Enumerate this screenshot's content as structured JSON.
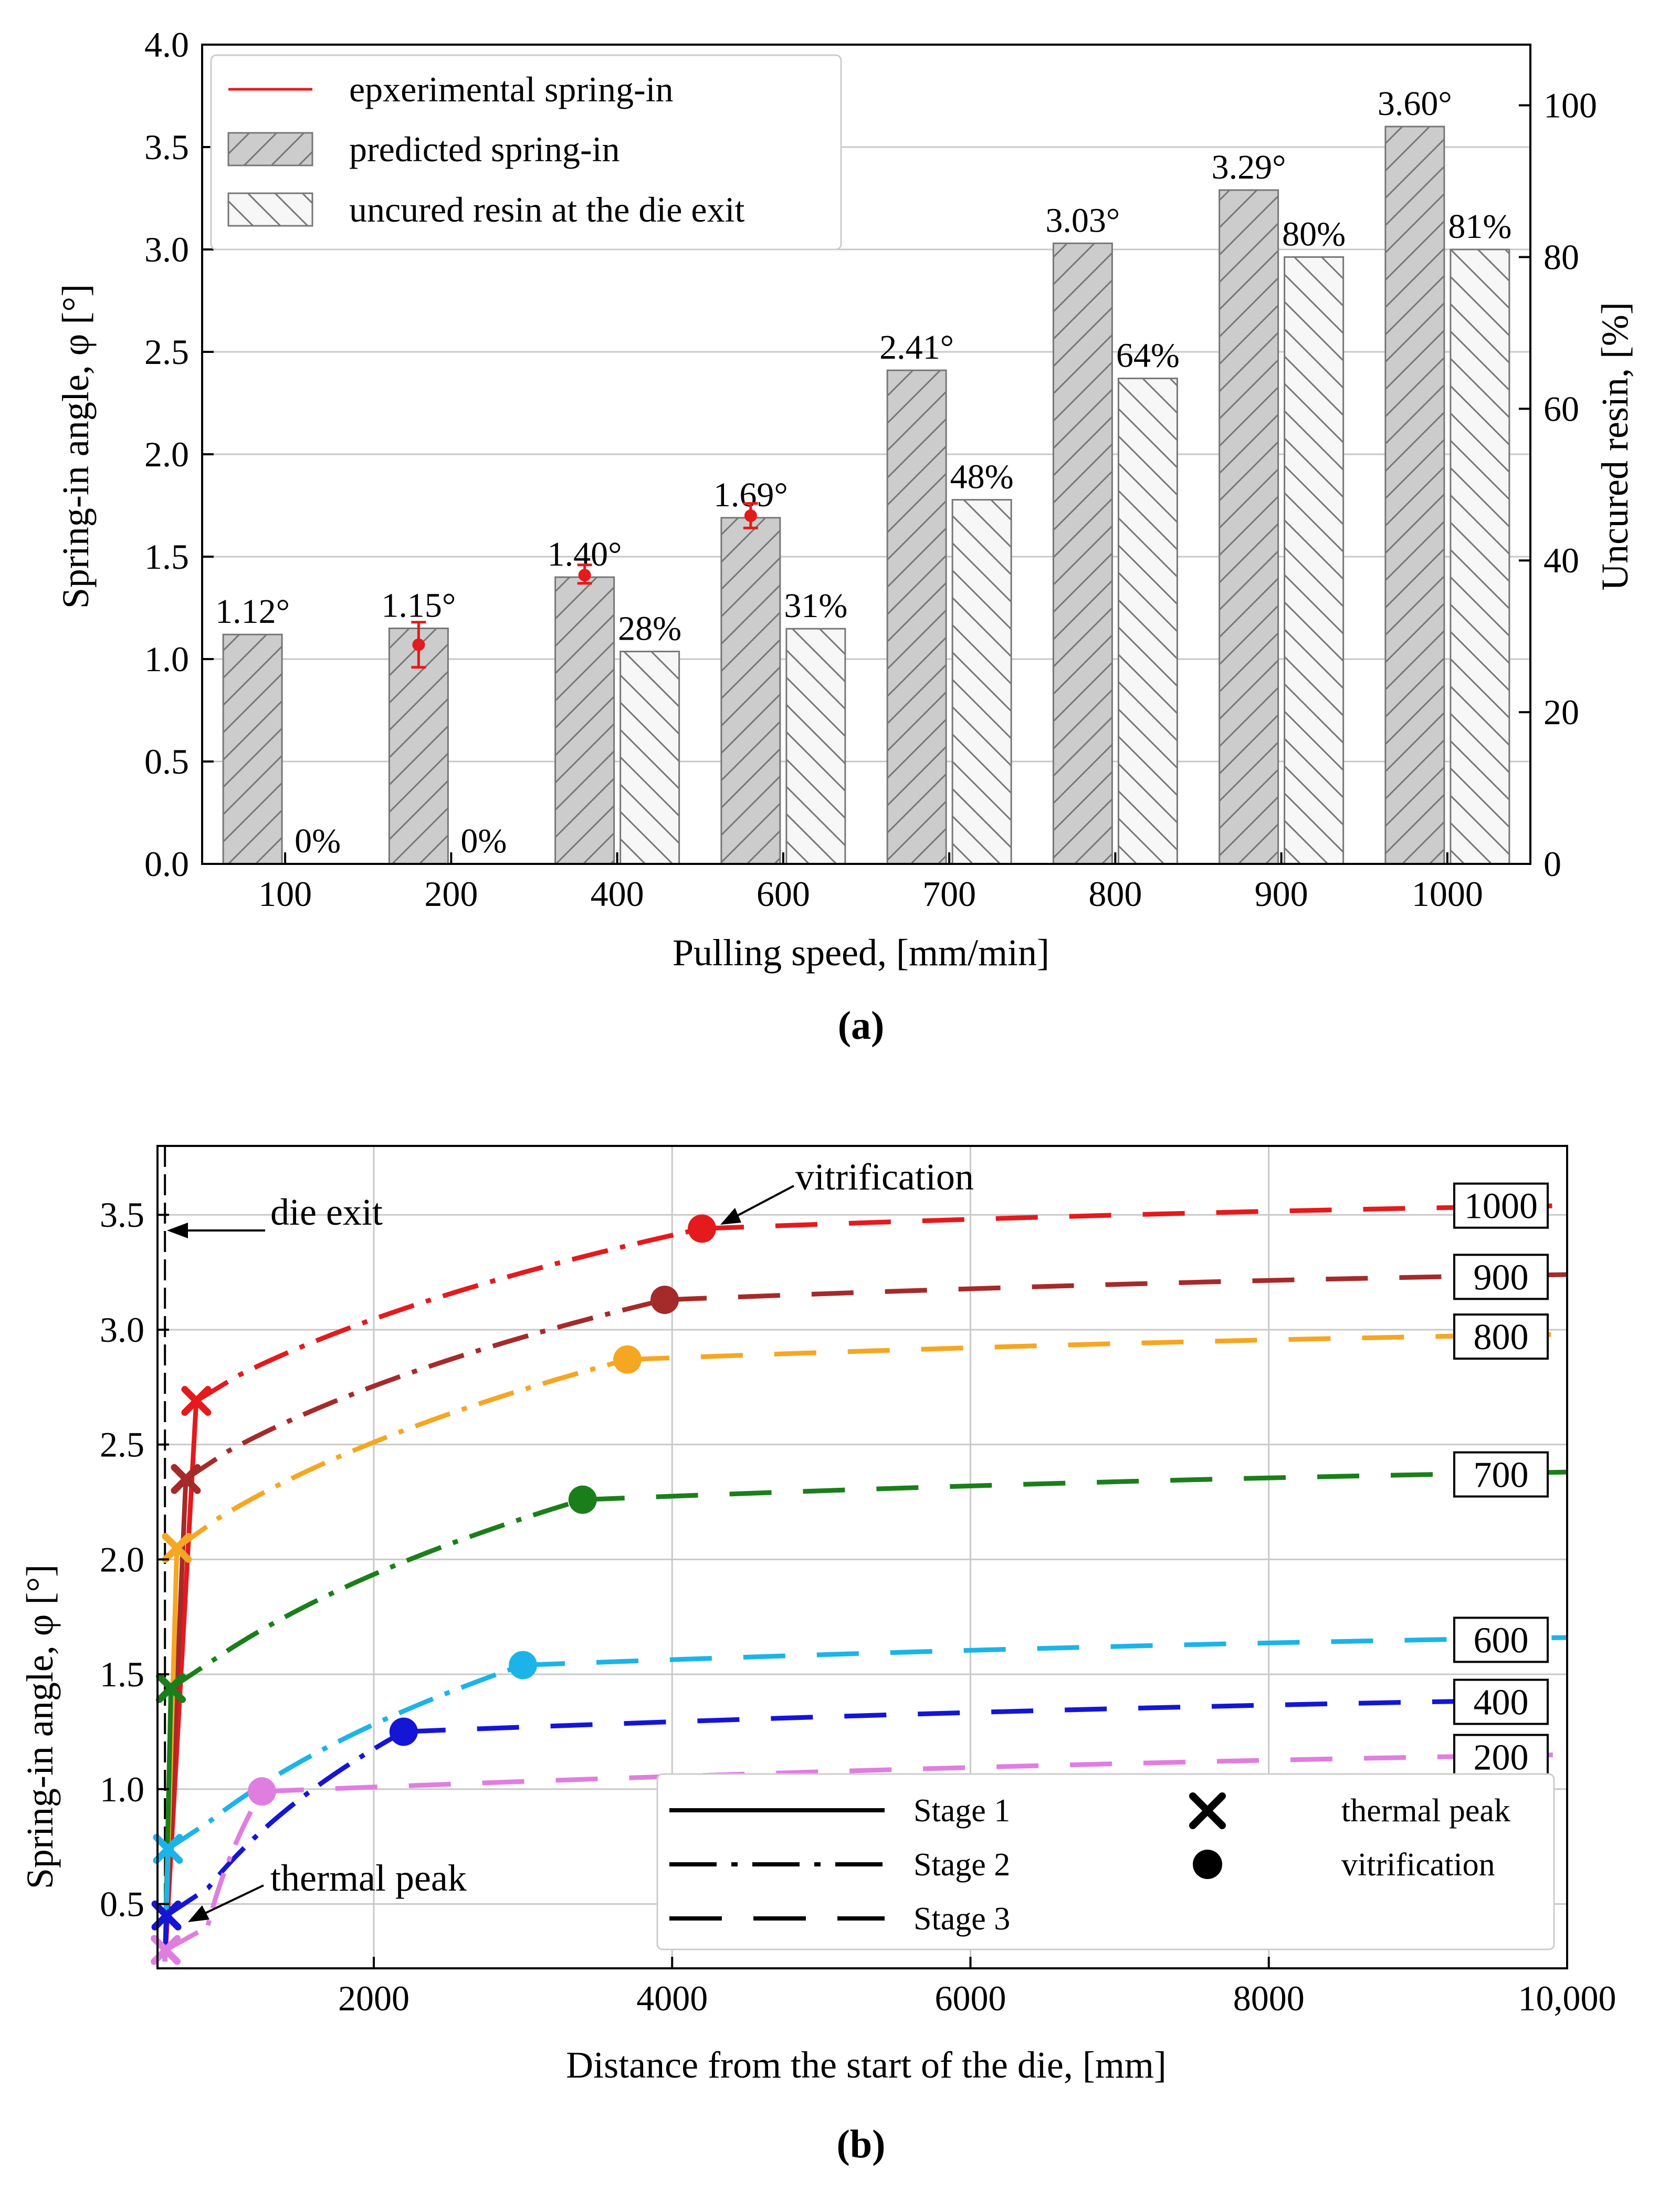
{
  "chart_data": [
    {
      "type": "bar",
      "panel_label": "(a)",
      "xlabel": "Pulling speed, [mm/min]",
      "ylabel": "Spring-in angle, φ [°]",
      "ylabel_right": "Uncured resin, [%]",
      "categories": [
        "100",
        "200",
        "400",
        "600",
        "700",
        "800",
        "900",
        "1000"
      ],
      "ylim": [
        0,
        4.0
      ],
      "ylim_right": [
        0,
        108
      ],
      "yticks": [
        "0.0",
        "0.5",
        "1.0",
        "1.5",
        "2.0",
        "2.5",
        "3.0",
        "3.5",
        "4.0"
      ],
      "yticks_right": [
        "0",
        "20",
        "40",
        "60",
        "80",
        "100"
      ],
      "grid": true,
      "legend_position": "top-left",
      "series": [
        {
          "name": "predicted spring-in",
          "axis": "left",
          "values": [
            1.12,
            1.15,
            1.4,
            1.69,
            2.41,
            3.03,
            3.29,
            3.6
          ],
          "labels": [
            "1.12°",
            "1.15°",
            "1.40°",
            "1.69°",
            "2.41°",
            "3.03°",
            "3.29°",
            "3.60°"
          ],
          "color": "#cccccc",
          "hatch": "forward"
        },
        {
          "name": "uncured resin at the die exit",
          "axis": "right",
          "values": [
            0,
            0,
            28,
            31,
            48,
            64,
            80,
            81
          ],
          "labels": [
            "0%",
            "0%",
            "28%",
            "31%",
            "48%",
            "64%",
            "80%",
            "81%"
          ],
          "color": "#f7f7f7",
          "hatch": "back"
        },
        {
          "name": "epxerimental spring-in",
          "axis": "left",
          "type": "errorbar",
          "color": "#e41a1c",
          "points": [
            {
              "category": "200",
              "value": 1.07,
              "err_low": 0.11,
              "err_high": 0.11
            },
            {
              "category": "400",
              "value": 1.41,
              "err_low": 0.04,
              "err_high": 0.05
            },
            {
              "category": "600",
              "value": 1.7,
              "err_low": 0.06,
              "err_high": 0.06
            }
          ]
        }
      ]
    },
    {
      "type": "line",
      "panel_label": "(b)",
      "xlabel": "Distance from the start of the die, [mm]",
      "ylabel": "Spring-in angle, φ [°]",
      "xlim": [
        550,
        10000
      ],
      "ylim": [
        0.22,
        3.8
      ],
      "xticks": [
        "2000",
        "4000",
        "6000",
        "8000",
        "10,000"
      ],
      "xtick_values": [
        2000,
        4000,
        6000,
        8000,
        10000
      ],
      "yticks": [
        "0.5",
        "1.0",
        "1.5",
        "2.0",
        "2.5",
        "3.0",
        "3.5"
      ],
      "ytick_values": [
        0.5,
        1.0,
        1.5,
        2.0,
        2.5,
        3.0,
        3.5
      ],
      "grid": true,
      "legend_position": "bottom-right",
      "die_exit_x": 600,
      "annotations": {
        "die_exit": "die exit",
        "vitrification": "vitrification",
        "thermal_peak": "thermal peak"
      },
      "legend": {
        "stage1": "Stage 1",
        "stage2": "Stage 2",
        "stage3": "Stage 3",
        "thermal_peak": "thermal peak",
        "vitrification": "vitrification"
      },
      "series": [
        {
          "name": "1000",
          "color": "#e41a1c",
          "peak": [
            810,
            2.69
          ],
          "vit": [
            4200,
            3.44
          ],
          "end": [
            10000,
            3.54
          ],
          "stage1_start": [
            600,
            0.25
          ],
          "knee": 2.8,
          "label_y": 3.54
        },
        {
          "name": "900",
          "color": "#a52a2a",
          "peak": [
            740,
            2.35
          ],
          "vit": [
            3950,
            3.13
          ],
          "end": [
            10000,
            3.24
          ],
          "stage1_start": [
            600,
            0.25
          ],
          "knee": 2.47,
          "label_y": 3.23
        },
        {
          "name": "800",
          "color": "#f5a623",
          "peak": [
            680,
            2.05
          ],
          "vit": [
            3700,
            2.87
          ],
          "end": [
            10000,
            2.98
          ],
          "stage1_start": [
            600,
            0.25
          ],
          "knee": 2.18,
          "label_y": 2.97
        },
        {
          "name": "700",
          "color": "#1a7f1a",
          "peak": [
            640,
            1.44
          ],
          "vit": [
            3400,
            2.26
          ],
          "end": [
            10000,
            2.38
          ],
          "stage1_start": [
            600,
            0.25
          ],
          "knee": 1.56,
          "label_y": 2.37
        },
        {
          "name": "600",
          "color": "#1cb4e8",
          "peak": [
            620,
            0.74
          ],
          "vit": [
            3000,
            1.54
          ],
          "end": [
            10000,
            1.66
          ],
          "stage1_start": [
            600,
            0.25
          ],
          "knee": 0.86,
          "label_y": 1.65
        },
        {
          "name": "400",
          "color": "#1515d6",
          "peak": [
            610,
            0.45
          ],
          "vit": [
            2200,
            1.25
          ],
          "end": [
            10000,
            1.39
          ],
          "stage1_start": [
            600,
            0.25
          ],
          "knee": 0.57,
          "label_y": 1.38
        },
        {
          "name": "200",
          "color": "#e07ee0",
          "peak": [
            605,
            0.3
          ],
          "vit": [
            1250,
            0.99
          ],
          "end": [
            10000,
            1.15
          ],
          "stage1_start": [
            600,
            0.25
          ],
          "knee": 0.4,
          "label_y": 1.14
        }
      ]
    }
  ]
}
